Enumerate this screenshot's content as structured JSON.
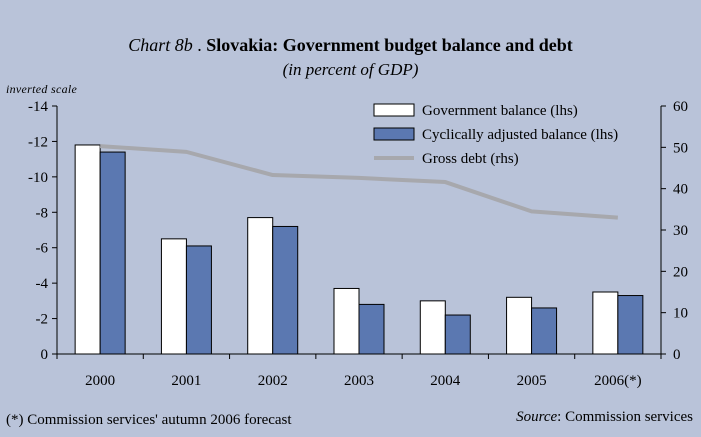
{
  "header": {
    "chart_label": "Chart 8b",
    "title": "Slovakia: Government budget balance and debt",
    "subtitle": "(in percent of GDP)"
  },
  "scale_note": "inverted scale",
  "footnote": "(*) Commission services' autumn 2006 forecast",
  "source": {
    "label": "Source",
    "text": ": Commission services"
  },
  "colors": {
    "background": "#b9c3d9",
    "govt_balance_bar": "#ffffff",
    "cyclical_bar": "#5b78b1",
    "gross_debt_line": "#a7a8ad"
  },
  "chart_data": {
    "type": "bar",
    "categories": [
      "2000",
      "2001",
      "2002",
      "2003",
      "2004",
      "2005",
      "2006(*)"
    ],
    "series": [
      {
        "name": "Government balance (lhs)",
        "type": "bar",
        "axis": "left",
        "values": [
          -11.8,
          -6.5,
          -7.7,
          -3.7,
          -3.0,
          -3.2,
          -3.5
        ]
      },
      {
        "name": "Cyclically adjusted balance (lhs)",
        "type": "bar",
        "axis": "left",
        "values": [
          -11.4,
          -6.1,
          -7.2,
          -2.8,
          -2.2,
          -2.6,
          -3.3
        ]
      },
      {
        "name": "Gross debt (rhs)",
        "type": "line",
        "axis": "right",
        "values": [
          50.3,
          48.9,
          43.3,
          42.6,
          41.6,
          34.5,
          33.0
        ]
      }
    ],
    "left_axis": {
      "ylim": [
        -14,
        0
      ],
      "inverted": true,
      "ticks": [
        "-14",
        "-12",
        "-10",
        "-8",
        "-6",
        "-4",
        "-2",
        "0"
      ]
    },
    "right_axis": {
      "ylim": [
        0,
        60
      ],
      "ticks": [
        "0",
        "10",
        "20",
        "30",
        "40",
        "50",
        "60"
      ]
    },
    "grid": false,
    "legend_position": "top-right"
  }
}
